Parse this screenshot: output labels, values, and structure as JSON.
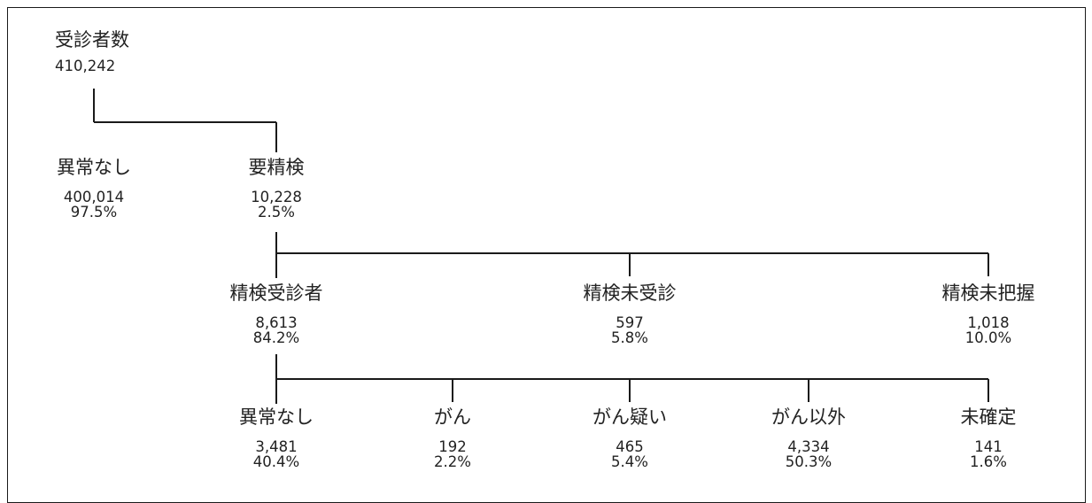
{
  "root": {
    "label": "受診者数",
    "count": "410,242"
  },
  "level1": [
    {
      "label": "異常なし",
      "count": "400,014",
      "pct": "97.5%"
    },
    {
      "label": "要精検",
      "count": "10,228",
      "pct": "2.5%"
    }
  ],
  "level2": [
    {
      "label": "精検受診者",
      "count": "8,613",
      "pct": "84.2%"
    },
    {
      "label": "精検未受診",
      "count": "597",
      "pct": "5.8%"
    },
    {
      "label": "精検未把握",
      "count": "1,018",
      "pct": "10.0%"
    }
  ],
  "level3": [
    {
      "label": "異常なし",
      "count": "3,481",
      "pct": "40.4%"
    },
    {
      "label": "がん",
      "count": "192",
      "pct": "2.2%"
    },
    {
      "label": "がん疑い",
      "count": "465",
      "pct": "5.4%"
    },
    {
      "label": "がん以外",
      "count": "4,334",
      "pct": "50.3%"
    },
    {
      "label": "未確定",
      "count": "141",
      "pct": "1.6%"
    }
  ]
}
